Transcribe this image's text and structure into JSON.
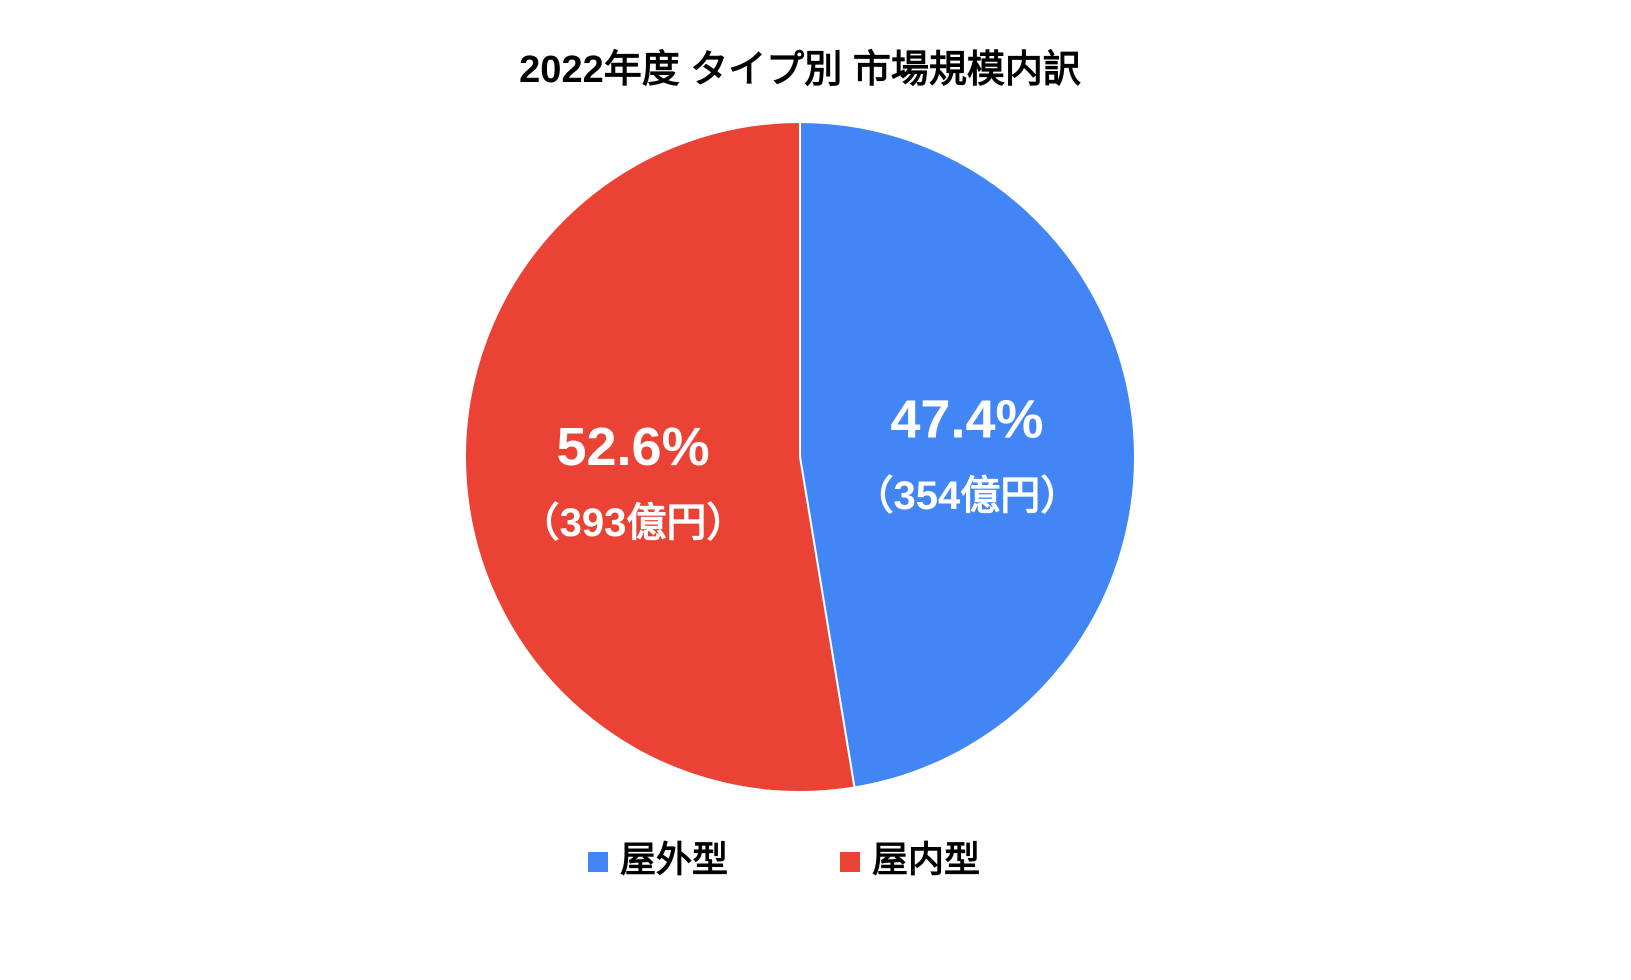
{
  "chart_data": {
    "type": "pie",
    "title": "2022年度 タイプ別 市場規模内訳",
    "categories": [
      "屋外型",
      "屋内型"
    ],
    "values": [
      47.4,
      52.6
    ],
    "value_labels": [
      "47.4%",
      "52.6%"
    ],
    "amount_labels": [
      "（354億円）",
      "（393億円）"
    ],
    "colors": [
      "#4285f4",
      "#ea4335"
    ],
    "legend": "bottom"
  }
}
